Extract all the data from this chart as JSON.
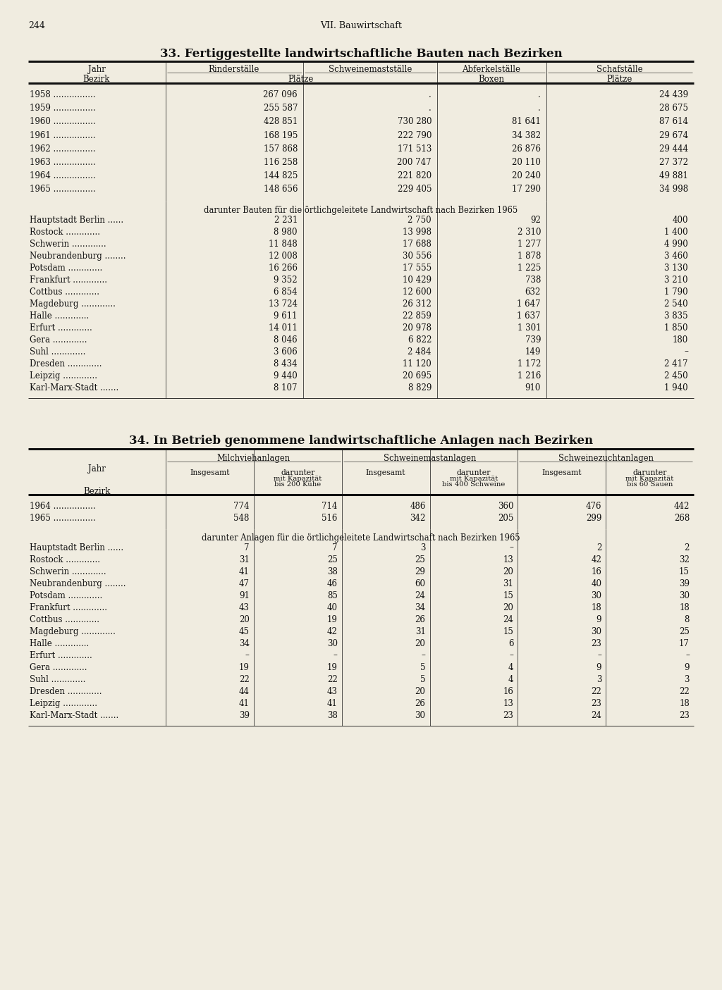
{
  "page_number": "244",
  "page_header": "VII. Bauwirtschaft",
  "bg_color": "#f0ece0",
  "table1_title": "33. Fertiggestellte landwirtschaftliche Bauten nach Bezirken",
  "table1_years": [
    "1958",
    "1959",
    "1960",
    "1961",
    "1962",
    "1963",
    "1964",
    "1965"
  ],
  "table1_year_data": [
    [
      "267 096",
      ".",
      ".",
      "24 439"
    ],
    [
      "255 587",
      ".",
      ".",
      "28 675"
    ],
    [
      "428 851",
      "730 280",
      "81 641",
      "87 614"
    ],
    [
      "168 195",
      "222 790",
      "34 382",
      "29 674"
    ],
    [
      "157 868",
      "171 513",
      "26 876",
      "29 444"
    ],
    [
      "116 258",
      "200 747",
      "20 110",
      "27 372"
    ],
    [
      "144 825",
      "221 820",
      "20 240",
      "49 881"
    ],
    [
      "148 656",
      "229 405",
      "17 290",
      "34 998"
    ]
  ],
  "table1_subtitle": "darunter Bauten für die örtlichgeleitete Landwirtschaft nach Bezirken 1965",
  "table1_regions": [
    "Hauptstadt Berlin ......",
    "Rostock .............",
    "Schwerin .............",
    "Neubrandenburg ........",
    "Potsdam .............",
    "Frankfurt .............",
    "Cottbus .............",
    "Magdeburg .............",
    "Halle .............",
    "Erfurt .............",
    "Gera .............",
    "Suhl .............",
    "Dresden .............",
    "Leipzig .............",
    "Karl-Marx-Stadt ......."
  ],
  "table1_region_data": [
    [
      "2 231",
      "2 750",
      "92",
      "400"
    ],
    [
      "8 980",
      "13 998",
      "2 310",
      "1 400"
    ],
    [
      "11 848",
      "17 688",
      "1 277",
      "4 990"
    ],
    [
      "12 008",
      "30 556",
      "1 878",
      "3 460"
    ],
    [
      "16 266",
      "17 555",
      "1 225",
      "3 130"
    ],
    [
      "9 352",
      "10 429",
      "738",
      "3 210"
    ],
    [
      "6 854",
      "12 600",
      "632",
      "1 790"
    ],
    [
      "13 724",
      "26 312",
      "1 647",
      "2 540"
    ],
    [
      "9 611",
      "22 859",
      "1 637",
      "3 835"
    ],
    [
      "14 011",
      "20 978",
      "1 301",
      "1 850"
    ],
    [
      "8 046",
      "6 822",
      "739",
      "180"
    ],
    [
      "3 606",
      "2 484",
      "149",
      "–"
    ],
    [
      "8 434",
      "11 120",
      "1 172",
      "2 417"
    ],
    [
      "9 440",
      "20 695",
      "1 216",
      "2 450"
    ],
    [
      "8 107",
      "8 829",
      "910",
      "1 940"
    ]
  ],
  "table2_title": "34. In Betrieb genommene landwirtschaftliche Anlagen nach Bezirken",
  "table2_col_groups": [
    "Milchviehanlagen",
    "Schweinemastanlagen",
    "Schweinezuchtanlagen"
  ],
  "table2_col_sub": [
    "Insgesamt",
    "darunter\nmit Kapazität\nbis 200 Kühe",
    "Insgesamt",
    "darunter\nmit Kapazität\nbis 400 Schweine",
    "Insgesamt",
    "darunter\nmit Kapazität\nbis 60 Sauen"
  ],
  "table2_years": [
    "1964",
    "1965"
  ],
  "table2_year_data": [
    [
      "774",
      "714",
      "486",
      "360",
      "476",
      "442"
    ],
    [
      "548",
      "516",
      "342",
      "205",
      "299",
      "268"
    ]
  ],
  "table2_subtitle": "darunter Anlagen für die örtlichgeleitete Landwirtschaft nach Bezirken 1965",
  "table2_regions": [
    "Hauptstadt Berlin ......",
    "Rostock .............",
    "Schwerin .............",
    "Neubrandenburg ........",
    "Potsdam .............",
    "Frankfurt .............",
    "Cottbus .............",
    "Magdeburg .............",
    "Halle .............",
    "Erfurt .............",
    "Gera .............",
    "Suhl .............",
    "Dresden .............",
    "Leipzig .............",
    "Karl-Marx-Stadt ......."
  ],
  "table2_region_data": [
    [
      "7",
      "7",
      "3",
      "–",
      "2",
      "2"
    ],
    [
      "31",
      "25",
      "25",
      "13",
      "42",
      "32"
    ],
    [
      "41",
      "38",
      "29",
      "20",
      "16",
      "15"
    ],
    [
      "47",
      "46",
      "60",
      "31",
      "40",
      "39"
    ],
    [
      "91",
      "85",
      "24",
      "15",
      "30",
      "30"
    ],
    [
      "43",
      "40",
      "34",
      "20",
      "18",
      "18"
    ],
    [
      "20",
      "19",
      "26",
      "24",
      "9",
      "8"
    ],
    [
      "45",
      "42",
      "31",
      "15",
      "30",
      "25"
    ],
    [
      "34",
      "30",
      "20",
      "6",
      "23",
      "17"
    ],
    [
      "–",
      "–",
      "–",
      "–",
      "–",
      "–"
    ],
    [
      "19",
      "19",
      "5",
      "4",
      "9",
      "9"
    ],
    [
      "22",
      "22",
      "5",
      "4",
      "3",
      "3"
    ],
    [
      "44",
      "43",
      "20",
      "16",
      "22",
      "22"
    ],
    [
      "41",
      "41",
      "26",
      "13",
      "23",
      "18"
    ],
    [
      "39",
      "38",
      "30",
      "23",
      "24",
      "23"
    ]
  ]
}
